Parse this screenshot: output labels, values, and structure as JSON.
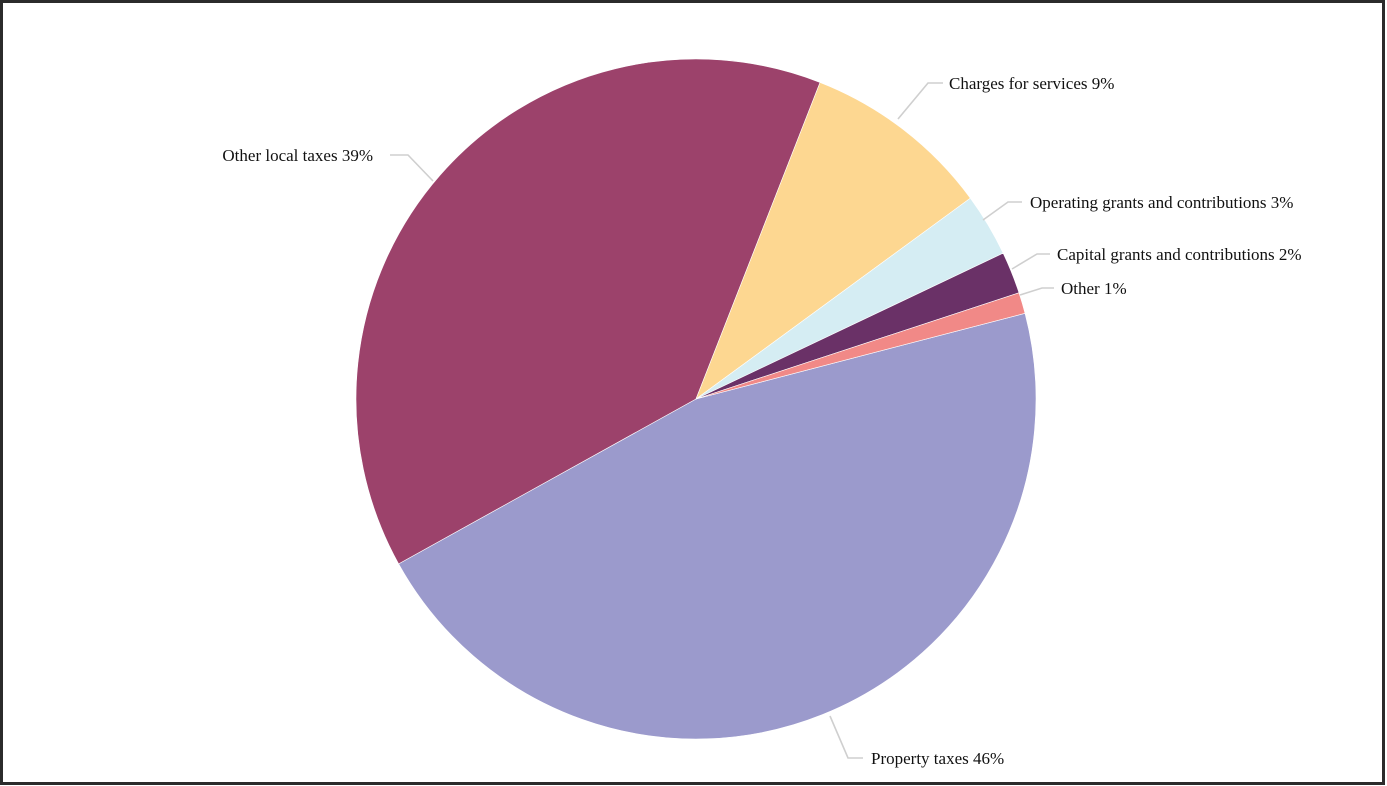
{
  "chart_data": {
    "type": "pie",
    "title": "",
    "slices": [
      {
        "label": "Property taxes 46%",
        "name": "Property taxes",
        "value": 46,
        "color": "#9b9acc"
      },
      {
        "label": "Other local taxes 39%",
        "name": "Other local taxes",
        "value": 39,
        "color": "#9c426b"
      },
      {
        "label": "Charges for services 9%",
        "name": "Charges for services",
        "value": 9,
        "color": "#fdd791"
      },
      {
        "label": "Operating grants and contributions 3%",
        "name": "Operating grants and contributions",
        "value": 3,
        "color": "#d5edf3"
      },
      {
        "label": "Capital grants and contributions 2%",
        "name": "Capital grants and contributions",
        "value": 2,
        "color": "#6a3167"
      },
      {
        "label": "Other 1%",
        "name": "Other",
        "value": 1,
        "color": "#f18987"
      }
    ],
    "legend": "none",
    "labels": "outside with leader lines"
  }
}
